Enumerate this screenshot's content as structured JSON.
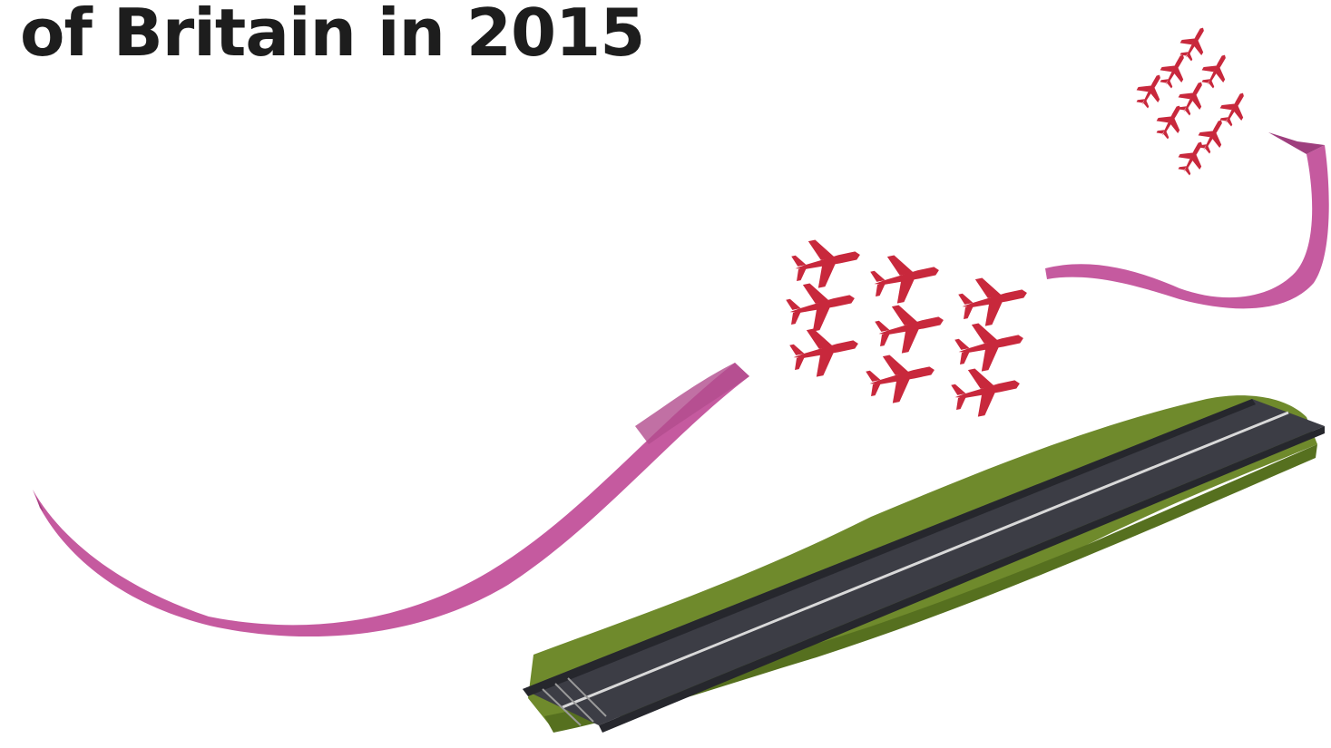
{
  "headline": "of Britain in 2015",
  "colors": {
    "smoke_trail": "#c55a9f",
    "smoke_trail_dark": "#9e3f7e",
    "jet": "#c8283c",
    "jet_dark": "#8f1a2a",
    "grass": "#6f8a2c",
    "grass_dark": "#56701f",
    "runway": "#3c3d45",
    "runway_edge": "#26272d",
    "runway_centerline": "#d9d9d9"
  },
  "icons": {
    "jet": "red-arrow-jet-icon",
    "trail": "smoke-trail-icon",
    "runway": "runway-icon"
  }
}
